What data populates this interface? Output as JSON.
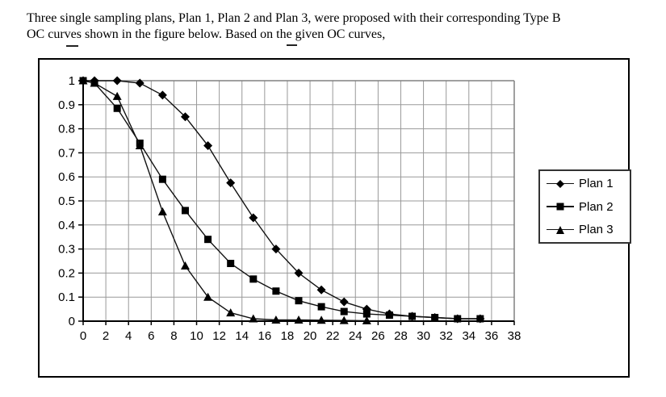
{
  "document": {
    "paragraph_line1": "Three single sampling plans, Plan 1, Plan 2 and Plan 3, were proposed with their corresponding Type B",
    "paragraph_line2": "OC curves shown in the figure below. Based on the given OC curves,"
  },
  "chart_data": {
    "type": "line",
    "title": "",
    "xlabel": "",
    "ylabel": "",
    "xlim": [
      0,
      38
    ],
    "ylim": [
      0,
      1
    ],
    "x_ticks": [
      0,
      2,
      4,
      6,
      8,
      10,
      12,
      14,
      16,
      18,
      20,
      22,
      24,
      26,
      28,
      30,
      32,
      34,
      36,
      38
    ],
    "y_ticks": [
      0,
      0.1,
      0.2,
      0.3,
      0.4,
      0.5,
      0.6,
      0.7,
      0.8,
      0.9,
      1
    ],
    "y_tick_labels": [
      "0",
      "0.1",
      "0.2",
      "0.3",
      "0.4",
      "0.5",
      "0.6",
      "0.7",
      "0.8",
      "0.9",
      "1"
    ],
    "grid": true,
    "legend_position": "right-inside",
    "series": [
      {
        "name": "Plan 1",
        "marker": "diamond",
        "x": [
          0,
          1,
          3,
          5,
          7,
          9,
          11,
          13,
          15,
          17,
          19,
          21,
          23,
          25,
          27,
          29,
          31,
          33,
          35
        ],
        "y": [
          1.0,
          1.0,
          1.0,
          0.99,
          0.94,
          0.85,
          0.73,
          0.575,
          0.43,
          0.3,
          0.2,
          0.13,
          0.08,
          0.05,
          0.03,
          0.02,
          0.015,
          0.01,
          0.01
        ]
      },
      {
        "name": "Plan 2",
        "marker": "square",
        "x": [
          0,
          1,
          3,
          5,
          7,
          9,
          11,
          13,
          15,
          17,
          19,
          21,
          23,
          25,
          27,
          29,
          31,
          33,
          35
        ],
        "y": [
          1.0,
          0.99,
          0.885,
          0.74,
          0.59,
          0.46,
          0.34,
          0.24,
          0.175,
          0.125,
          0.085,
          0.06,
          0.04,
          0.03,
          0.025,
          0.02,
          0.015,
          0.01,
          0.01
        ]
      },
      {
        "name": "Plan 3",
        "marker": "triangle",
        "x": [
          0,
          1,
          3,
          5,
          7,
          9,
          11,
          13,
          15,
          17,
          19,
          21,
          23,
          25
        ],
        "y": [
          1.0,
          0.99,
          0.935,
          0.73,
          0.455,
          0.23,
          0.1,
          0.035,
          0.01,
          0.005,
          0.005,
          0.004,
          0.003,
          0.002
        ]
      }
    ],
    "colors": {
      "series": "#111111",
      "grid": "#999999",
      "plot_border": "#808080",
      "axis": "#000000"
    }
  }
}
